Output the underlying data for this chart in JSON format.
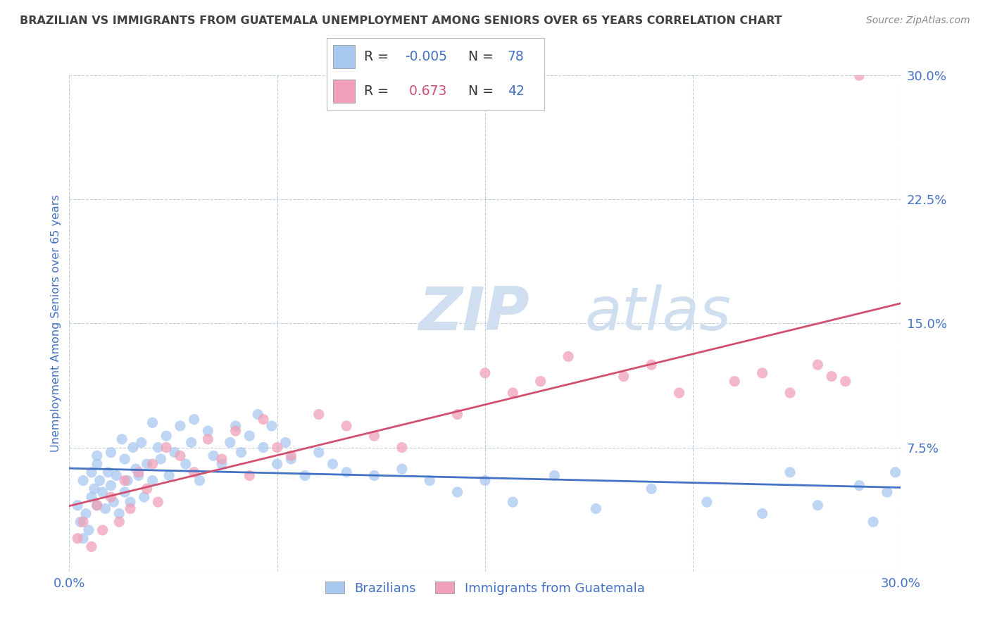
{
  "title": "BRAZILIAN VS IMMIGRANTS FROM GUATEMALA UNEMPLOYMENT AMONG SENIORS OVER 65 YEARS CORRELATION CHART",
  "source": "Source: ZipAtlas.com",
  "ylabel": "Unemployment Among Seniors over 65 years",
  "xlim": [
    0.0,
    0.3
  ],
  "ylim": [
    0.0,
    0.3
  ],
  "xticks": [
    0.0,
    0.075,
    0.15,
    0.225,
    0.3
  ],
  "xtick_labels": [
    "0.0%",
    "",
    "",
    "",
    "30.0%"
  ],
  "yticks": [
    0.0,
    0.075,
    0.15,
    0.225,
    0.3
  ],
  "ytick_labels": [
    "",
    "7.5%",
    "15.0%",
    "22.5%",
    "30.0%"
  ],
  "R_brazilian": -0.005,
  "N_brazilian": 78,
  "R_guatemala": 0.673,
  "N_guatemala": 42,
  "color_brazilian": "#a8c8f0",
  "color_guatemala": "#f0a0b8",
  "line_color_brazilian": "#4472c4",
  "line_color_guatemala": "#d05070",
  "watermark_color": "#d0dff0",
  "background_color": "#ffffff",
  "grid_color": "#c0cfe0",
  "title_color": "#404040",
  "axis_label_color": "#4472c4",
  "tick_label_color": "#4472c4",
  "legend_r_color_blue": "#4472c4",
  "legend_r_color_pink": "#d05070",
  "legend_n_color": "#4472c4",
  "brazilians_x": [
    0.003,
    0.004,
    0.005,
    0.005,
    0.006,
    0.007,
    0.008,
    0.008,
    0.009,
    0.01,
    0.01,
    0.01,
    0.011,
    0.012,
    0.013,
    0.014,
    0.015,
    0.015,
    0.016,
    0.017,
    0.018,
    0.019,
    0.02,
    0.02,
    0.021,
    0.022,
    0.023,
    0.024,
    0.025,
    0.026,
    0.027,
    0.028,
    0.03,
    0.03,
    0.032,
    0.033,
    0.035,
    0.036,
    0.038,
    0.04,
    0.042,
    0.044,
    0.045,
    0.047,
    0.05,
    0.052,
    0.055,
    0.058,
    0.06,
    0.062,
    0.065,
    0.068,
    0.07,
    0.073,
    0.075,
    0.078,
    0.08,
    0.085,
    0.09,
    0.095,
    0.1,
    0.11,
    0.12,
    0.13,
    0.14,
    0.15,
    0.16,
    0.175,
    0.19,
    0.21,
    0.23,
    0.25,
    0.26,
    0.27,
    0.285,
    0.29,
    0.295,
    0.298
  ],
  "brazilians_y": [
    0.04,
    0.03,
    0.02,
    0.055,
    0.035,
    0.025,
    0.045,
    0.06,
    0.05,
    0.04,
    0.065,
    0.07,
    0.055,
    0.048,
    0.038,
    0.06,
    0.052,
    0.072,
    0.042,
    0.058,
    0.035,
    0.08,
    0.068,
    0.048,
    0.055,
    0.042,
    0.075,
    0.062,
    0.058,
    0.078,
    0.045,
    0.065,
    0.09,
    0.055,
    0.075,
    0.068,
    0.082,
    0.058,
    0.072,
    0.088,
    0.065,
    0.078,
    0.092,
    0.055,
    0.085,
    0.07,
    0.065,
    0.078,
    0.088,
    0.072,
    0.082,
    0.095,
    0.075,
    0.088,
    0.065,
    0.078,
    0.068,
    0.058,
    0.072,
    0.065,
    0.06,
    0.058,
    0.062,
    0.055,
    0.048,
    0.055,
    0.042,
    0.058,
    0.038,
    0.05,
    0.042,
    0.035,
    0.06,
    0.04,
    0.052,
    0.03,
    0.048,
    0.06
  ],
  "guatemala_x": [
    0.003,
    0.005,
    0.008,
    0.01,
    0.012,
    0.015,
    0.018,
    0.02,
    0.022,
    0.025,
    0.028,
    0.03,
    0.032,
    0.035,
    0.04,
    0.045,
    0.05,
    0.055,
    0.06,
    0.065,
    0.07,
    0.075,
    0.08,
    0.09,
    0.1,
    0.11,
    0.12,
    0.14,
    0.15,
    0.16,
    0.17,
    0.18,
    0.2,
    0.21,
    0.22,
    0.24,
    0.25,
    0.26,
    0.27,
    0.275,
    0.28,
    0.285
  ],
  "guatemala_y": [
    0.02,
    0.03,
    0.015,
    0.04,
    0.025,
    0.045,
    0.03,
    0.055,
    0.038,
    0.06,
    0.05,
    0.065,
    0.042,
    0.075,
    0.07,
    0.06,
    0.08,
    0.068,
    0.085,
    0.058,
    0.092,
    0.075,
    0.07,
    0.095,
    0.088,
    0.082,
    0.075,
    0.095,
    0.12,
    0.108,
    0.115,
    0.13,
    0.118,
    0.125,
    0.108,
    0.115,
    0.12,
    0.108,
    0.125,
    0.118,
    0.115,
    0.3
  ]
}
